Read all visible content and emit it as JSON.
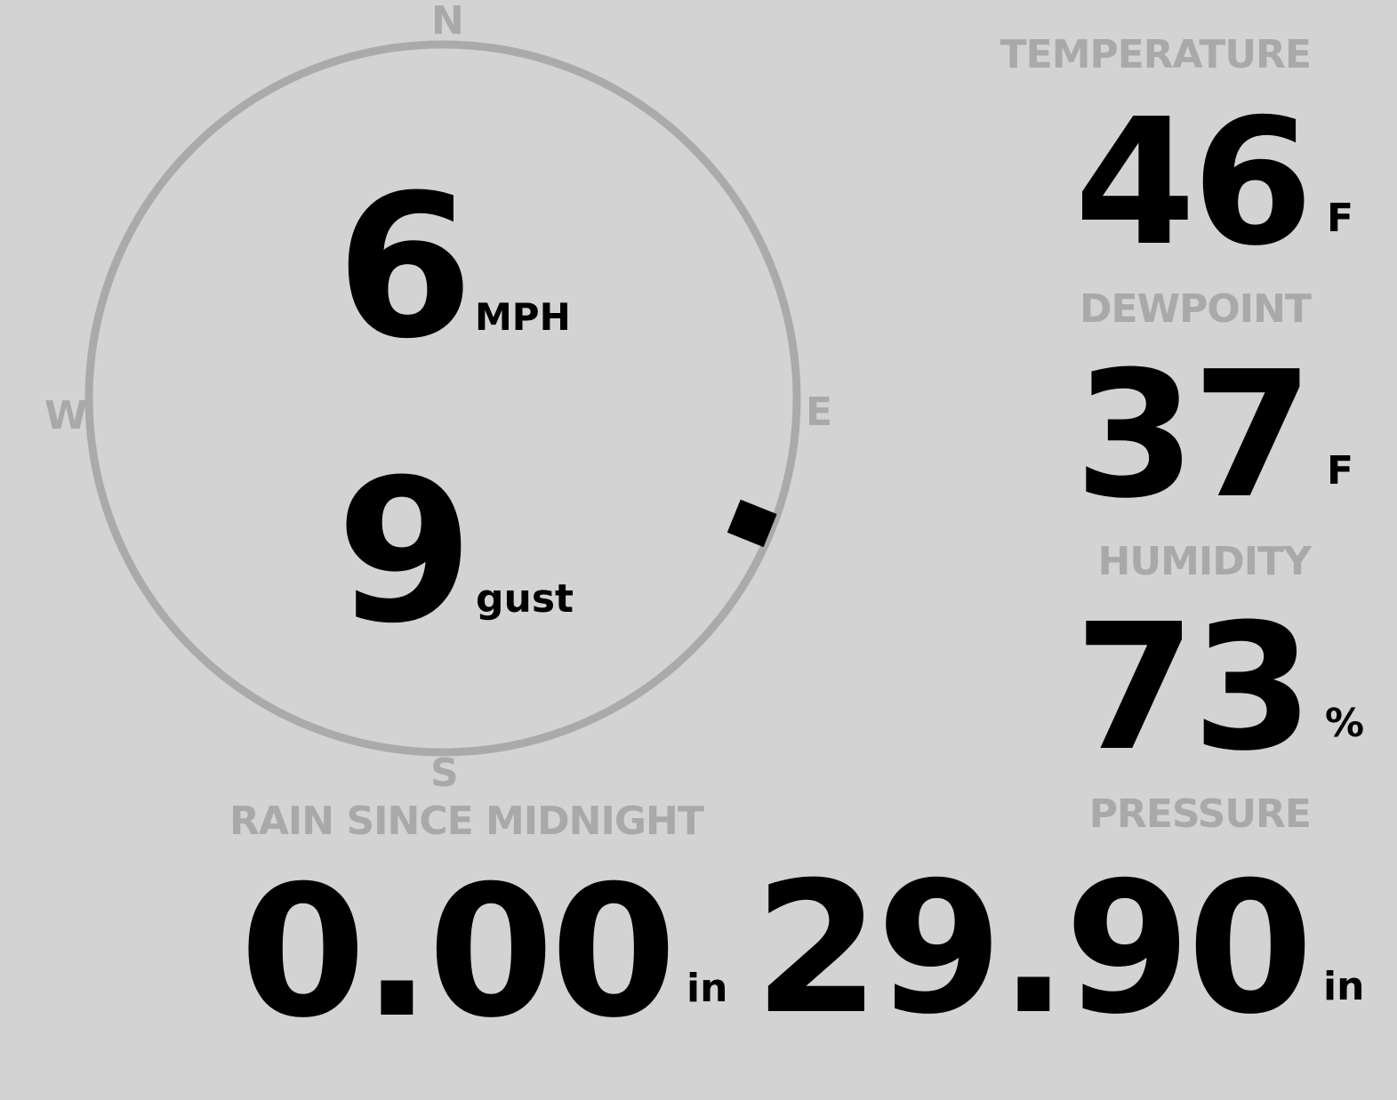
{
  "colors": {
    "background": "#d3d3d3",
    "label": "#a9a9a9",
    "value": "#000000",
    "compass_ring": "#aaaaaa",
    "wind_marker": "#000000"
  },
  "wind": {
    "compass": {
      "north": "N",
      "east": "E",
      "south": "S",
      "west": "W"
    },
    "direction_degrees": 112,
    "speed": "6",
    "speed_unit": "MPH",
    "gust": "9",
    "gust_unit": "gust"
  },
  "temperature": {
    "label": "TEMPERATURE",
    "value": "46",
    "unit": "F"
  },
  "dewpoint": {
    "label": "DEWPOINT",
    "value": "37",
    "unit": "F"
  },
  "humidity": {
    "label": "HUMIDITY",
    "value": "73",
    "unit": "%"
  },
  "rain": {
    "label": "RAIN SINCE MIDNIGHT",
    "value": "0.00",
    "unit": "in"
  },
  "pressure": {
    "label": "PRESSURE",
    "value": "29.90",
    "unit": "in"
  }
}
